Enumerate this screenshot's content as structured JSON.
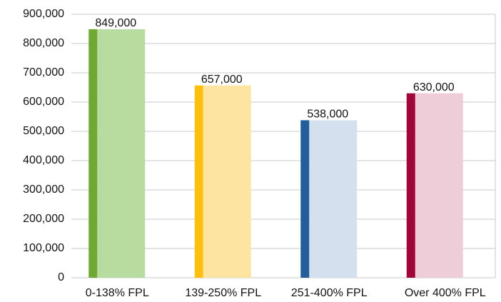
{
  "chart_data": {
    "type": "bar",
    "categories": [
      "0-138% FPL",
      "139-250% FPL",
      "251-400% FPL",
      "Over 400% FPL"
    ],
    "values": [
      849000,
      657000,
      538000,
      630000
    ],
    "value_labels": [
      "849,000",
      "657,000",
      "538,000",
      "630,000"
    ],
    "colors": [
      "#b8dca0",
      "#fde4a0",
      "#d5e0ee",
      "#efcdd8"
    ],
    "accent_colors": [
      "#6fa832",
      "#ffbf10",
      "#235e9a",
      "#a0063a"
    ],
    "ylim": [
      0,
      900000
    ],
    "yticks": [
      0,
      {
        "value": 100000,
        "label": "100,000"
      },
      {
        "value": 200000,
        "label": "200,000"
      },
      {
        "value": 300000,
        "label": "300,000"
      },
      {
        "value": 400000,
        "label": "400,000"
      },
      {
        "value": 500000,
        "label": "500,000"
      },
      {
        "value": 600000,
        "label": "600,000"
      },
      {
        "value": 700000,
        "label": "700,000"
      },
      {
        "value": 800000,
        "label": "800,000"
      },
      {
        "value": 900000,
        "label": "900,000"
      }
    ],
    "grid": true
  }
}
